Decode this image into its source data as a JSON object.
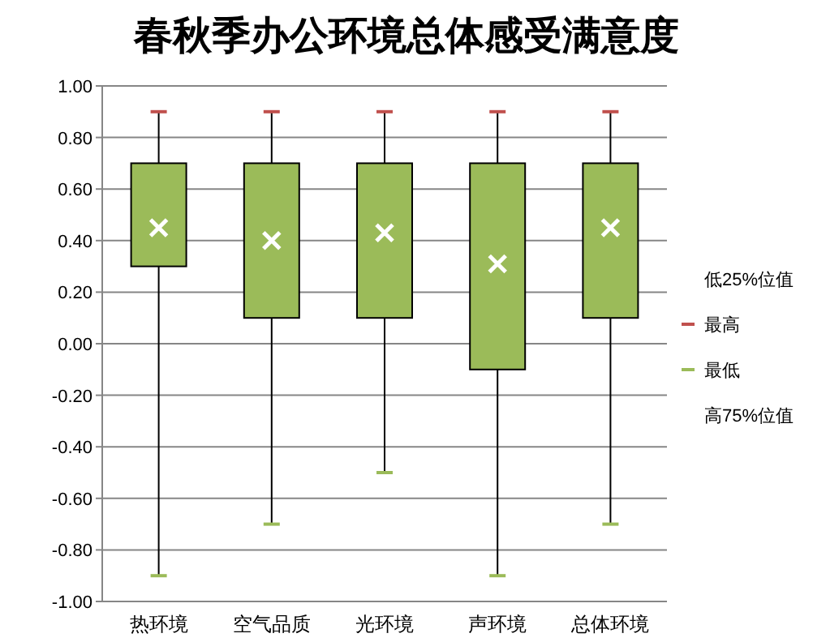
{
  "chart_data": {
    "type": "candlestick",
    "title": "春秋季办公环境总体感受满意度",
    "categories": [
      "热环境",
      "空气品质",
      "光环境",
      "声环境",
      "总体环境"
    ],
    "ohlc": [
      [
        0.3,
        0.9,
        -0.9,
        0.7
      ],
      [
        0.1,
        0.9,
        -0.7,
        0.7
      ],
      [
        0.1,
        0.9,
        -0.5,
        0.7
      ],
      [
        -0.1,
        0.9,
        -0.9,
        0.7
      ],
      [
        0.1,
        0.9,
        -0.7,
        0.7
      ]
    ],
    "color": "#9bbb59",
    "series": [
      {
        "type": "scatter",
        "values": [
          0.45,
          0.4,
          0.43,
          0.31,
          0.45
        ],
        "color": "#ffffff",
        "marker": "cross"
      }
    ],
    "annotations": [
      "低25%位值",
      "最高",
      "最低",
      "高75%位值"
    ],
    "ylim": [
      -1,
      1
    ],
    "yticks": [
      {
        "value": -1,
        "label": "-1.00"
      },
      {
        "value": -0.8,
        "label": "-0.80"
      },
      {
        "value": -0.6,
        "label": "-0.60"
      },
      {
        "value": -0.4,
        "label": "-0.40"
      },
      {
        "value": -0.2,
        "label": "-0.20"
      },
      {
        "value": 0,
        "label": "0.00"
      },
      {
        "value": 0.2,
        "label": "0.20"
      },
      {
        "value": 0.4,
        "label": "0.40"
      },
      {
        "value": 0.6,
        "label": "0.60"
      },
      {
        "value": 0.8,
        "label": "0.80"
      },
      {
        "value": 1,
        "label": "1.00"
      }
    ],
    "grid": "y"
  }
}
